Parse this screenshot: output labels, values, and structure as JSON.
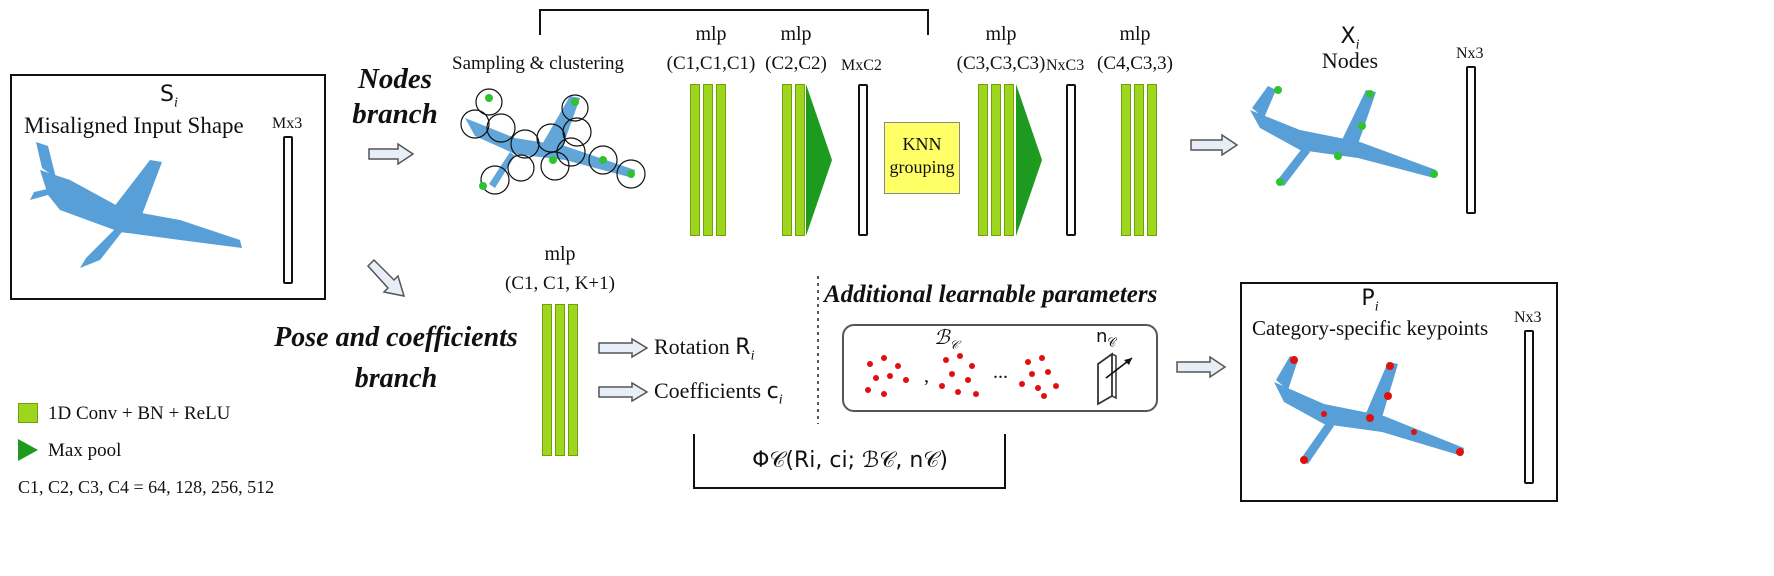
{
  "input": {
    "symbol": "S",
    "sub": "i",
    "title": "Misaligned Input Shape",
    "dim": "Mx3"
  },
  "nodes_branch": {
    "label_line1": "Nodes",
    "label_line2": "branch",
    "sampling_label": "Sampling & clustering",
    "mlp1": {
      "label": "mlp",
      "params": "(C1,C1,C1)"
    },
    "mlp2": {
      "label": "mlp",
      "params": "(C2,C2)"
    },
    "dim1": "MxC2",
    "knn_line1": "KNN",
    "knn_line2": "grouping",
    "mlp3": {
      "label": "mlp",
      "params": "(C3,C3,C3)"
    },
    "dim2": "NxC3",
    "mlp4": {
      "label": "mlp",
      "params": "(C4,C3,3)"
    }
  },
  "output_nodes": {
    "symbol": "X",
    "sub": "i",
    "title": "Nodes",
    "dim": "Nx3"
  },
  "pose_branch": {
    "label_line1": "Pose and coefficients",
    "label_line2": "branch",
    "mlp": {
      "label": "mlp",
      "params": "(C1, C1, K+1)"
    },
    "rotation": "Rotation",
    "rotation_symbol": "R",
    "coefficients": "Coefficients",
    "coefficients_symbol": "c"
  },
  "learnable": {
    "title": "Additional learnable parameters",
    "basis": "ℬ",
    "normal": "n",
    "sep": ",",
    "ellipsis": "..."
  },
  "function": "Φ𝒞(Ri, ci; ℬ𝒞, n𝒞)",
  "output_keypoints": {
    "symbol": "P",
    "sub": "i",
    "title": "Category-specific keypoints",
    "dim": "Nx3"
  },
  "legend": {
    "conv": "1D Conv + BN + ReLU",
    "pool": "Max pool",
    "channels": "C1, C2, C3, C4 = 64, 128, 256, 512"
  },
  "colors": {
    "conv_bar": "#9ed61e",
    "max_pool": "#1e9a1e",
    "knn_box": "#ffff66",
    "point_cloud": "#3a8fd0",
    "keypoint": "#e01010",
    "node": "#2fc42f",
    "arrow_fill": "#e8eef8"
  }
}
